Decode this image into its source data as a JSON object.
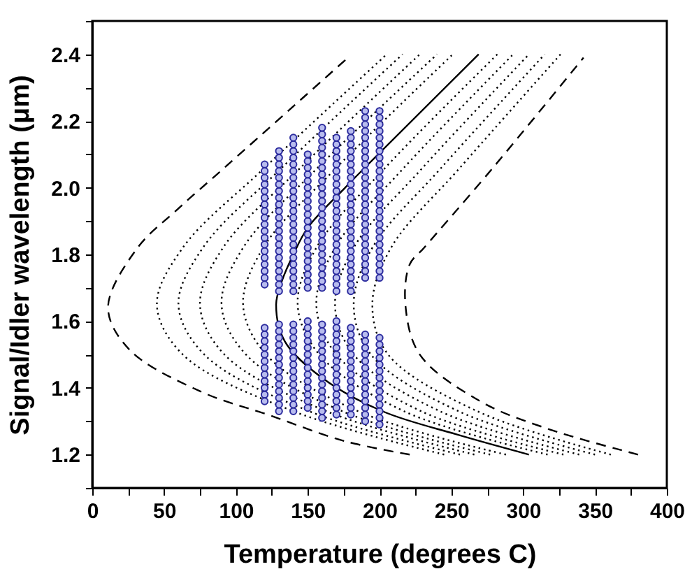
{
  "chart_data": {
    "type": "line",
    "xlabel": "Temperature (degrees C)",
    "ylabel": "Signal/Idler wavelength (μm)",
    "xlim": [
      0,
      400
    ],
    "ylim": [
      1.1,
      2.5
    ],
    "xticks": [
      0,
      {
        "value": 25,
        "label": null
      },
      50,
      {
        "value": 75,
        "label": null
      },
      100,
      {
        "value": 125,
        "label": null
      },
      150,
      {
        "value": 175,
        "label": null
      },
      200,
      {
        "value": 225,
        "label": null
      },
      250,
      {
        "value": 275,
        "label": null
      },
      300,
      {
        "value": 325,
        "label": null
      },
      350,
      {
        "value": 375,
        "label": null
      },
      400
    ],
    "yticks": [
      {
        "value": 1.1,
        "label": null
      },
      {
        "value": 1.2,
        "label": "1.2"
      },
      {
        "value": 1.3,
        "label": null
      },
      {
        "value": 1.4,
        "label": "1.4"
      },
      {
        "value": 1.5,
        "label": null
      },
      {
        "value": 1.6,
        "label": "1.6"
      },
      {
        "value": 1.7,
        "label": null
      },
      {
        "value": 1.8,
        "label": "1.8"
      },
      {
        "value": 1.9,
        "label": null
      },
      {
        "value": 2.0,
        "label": "2.0"
      },
      {
        "value": 2.1,
        "label": null
      },
      {
        "value": 2.2,
        "label": "2.2"
      },
      {
        "value": 2.3,
        "label": null
      },
      {
        "value": 2.4,
        "label": "2.4"
      },
      {
        "value": 2.5,
        "label": null
      }
    ],
    "grid": false,
    "series": [
      {
        "color": "#000000",
        "line_style": "dashed",
        "x": [
          221,
          176,
          124,
          75,
          26,
          11,
          31,
          59,
          92,
          178
        ],
        "values": [
          1.2,
          1.24,
          1.317,
          1.39,
          1.514,
          1.64,
          1.817,
          1.934,
          2.06,
          2.39
        ]
      },
      {
        "color": "#000000",
        "line_style": "dotted",
        "x": [
          245,
          140,
          63,
          45,
          63,
          120,
          205
        ],
        "values": [
          1.2,
          1.33,
          1.5,
          1.65,
          1.82,
          2.06,
          2.4
        ]
      },
      {
        "color": "#000000",
        "line_style": "dotted",
        "x": [
          256,
          151,
          78,
          60,
          77,
          132,
          216
        ],
        "values": [
          1.2,
          1.33,
          1.5,
          1.65,
          1.82,
          2.06,
          2.4
        ]
      },
      {
        "color": "#000000",
        "line_style": "dotted",
        "x": [
          266,
          163,
          92,
          75,
          91,
          145,
          228
        ],
        "values": [
          1.2,
          1.33,
          1.5,
          1.65,
          1.82,
          2.06,
          2.4
        ]
      },
      {
        "color": "#000000",
        "line_style": "dotted",
        "x": [
          277,
          174,
          107,
          90,
          105,
          157,
          240
        ],
        "values": [
          1.2,
          1.33,
          1.5,
          1.65,
          1.82,
          2.06,
          2.4
        ]
      },
      {
        "color": "#000000",
        "line_style": "dotted",
        "x": [
          288,
          185,
          121,
          105,
          119,
          170,
          251
        ],
        "values": [
          1.2,
          1.33,
          1.5,
          1.65,
          1.82,
          2.06,
          2.4
        ]
      },
      {
        "color": "#000000",
        "line_style": "solid",
        "x": [
          304,
          254,
          202,
          160,
          134,
          128,
          132,
          140,
          150,
          176,
          199,
          269
        ],
        "values": [
          1.2,
          1.26,
          1.33,
          1.43,
          1.54,
          1.65,
          1.72,
          1.8,
          1.88,
          2.0,
          2.1,
          2.4
        ]
      },
      {
        "color": "#000000",
        "line_style": "dotted",
        "x": [
          317,
          217,
          158,
          143,
          156,
          204,
          282
        ],
        "values": [
          1.2,
          1.33,
          1.5,
          1.65,
          1.82,
          2.06,
          2.4
        ]
      },
      {
        "color": "#000000",
        "line_style": "dotted",
        "x": [
          328,
          229,
          170,
          156,
          169,
          217,
          293
        ],
        "values": [
          1.2,
          1.33,
          1.5,
          1.65,
          1.82,
          2.06,
          2.4
        ]
      },
      {
        "color": "#000000",
        "line_style": "dotted",
        "x": [
          339,
          242,
          182,
          169,
          182,
          230,
          304
        ],
        "values": [
          1.2,
          1.33,
          1.5,
          1.65,
          1.82,
          2.06,
          2.4
        ]
      },
      {
        "color": "#000000",
        "line_style": "dotted",
        "x": [
          350,
          255,
          194,
          182,
          195,
          243,
          315
        ],
        "values": [
          1.2,
          1.33,
          1.5,
          1.65,
          1.82,
          2.06,
          2.4
        ]
      },
      {
        "color": "#000000",
        "line_style": "dotted",
        "x": [
          361,
          268,
          206,
          195,
          208,
          256,
          326
        ],
        "values": [
          1.2,
          1.33,
          1.5,
          1.65,
          1.82,
          2.06,
          2.4
        ]
      },
      {
        "color": "#000000",
        "line_style": "dashed",
        "x": [
          380,
          318,
          270,
          228,
          218,
          221,
          231,
          279,
          342
        ],
        "values": [
          1.2,
          1.276,
          1.36,
          1.5,
          1.65,
          1.77,
          1.82,
          2.06,
          2.39
        ]
      },
      {
        "type": "scatter",
        "marker": "circle",
        "color": "#2b2b9e",
        "x": [
          120,
          120,
          120,
          120,
          120,
          120,
          120,
          120,
          120,
          120,
          120,
          120,
          120,
          120,
          120,
          120,
          120,
          120,
          120,
          120,
          120,
          120,
          120,
          120,
          120,
          120,
          120,
          120,
          120,
          120,
          120
        ],
        "values": [
          1.36,
          1.38,
          1.4,
          1.42,
          1.44,
          1.46,
          1.48,
          1.5,
          1.52,
          1.54,
          1.56,
          1.58,
          1.71,
          1.73,
          1.75,
          1.77,
          1.79,
          1.81,
          1.83,
          1.85,
          1.87,
          1.89,
          1.91,
          1.93,
          1.95,
          1.97,
          1.99,
          2.01,
          2.03,
          2.05,
          2.07
        ]
      },
      {
        "type": "scatter",
        "marker": "circle",
        "color": "#2b2b9e",
        "x": [
          130,
          130,
          130,
          130,
          130,
          130,
          130,
          130,
          130,
          130,
          130,
          130,
          130,
          130,
          130,
          130,
          130,
          130,
          130,
          130,
          130,
          130,
          130,
          130,
          130,
          130,
          130,
          130,
          130,
          130,
          130,
          130,
          130,
          130,
          130,
          130
        ],
        "values": [
          1.33,
          1.35,
          1.37,
          1.39,
          1.41,
          1.43,
          1.45,
          1.47,
          1.49,
          1.51,
          1.53,
          1.55,
          1.57,
          1.59,
          1.69,
          1.71,
          1.73,
          1.75,
          1.77,
          1.79,
          1.81,
          1.83,
          1.85,
          1.87,
          1.89,
          1.91,
          1.93,
          1.95,
          1.97,
          1.99,
          2.01,
          2.03,
          2.05,
          2.07,
          2.09,
          2.11
        ]
      },
      {
        "type": "scatter",
        "marker": "circle",
        "color": "#2b2b9e",
        "x": [
          140,
          140,
          140,
          140,
          140,
          140,
          140,
          140,
          140,
          140,
          140,
          140,
          140,
          140,
          140,
          140,
          140,
          140,
          140,
          140,
          140,
          140,
          140,
          140,
          140,
          140,
          140,
          140,
          140,
          140,
          140,
          140,
          140,
          140,
          140,
          140,
          140,
          140
        ],
        "values": [
          1.33,
          1.35,
          1.37,
          1.39,
          1.41,
          1.43,
          1.45,
          1.47,
          1.49,
          1.51,
          1.53,
          1.55,
          1.57,
          1.59,
          1.69,
          1.71,
          1.73,
          1.75,
          1.77,
          1.79,
          1.81,
          1.83,
          1.85,
          1.87,
          1.89,
          1.91,
          1.93,
          1.95,
          1.97,
          1.99,
          2.01,
          2.03,
          2.05,
          2.07,
          2.09,
          2.11,
          2.13,
          2.15
        ]
      },
      {
        "type": "scatter",
        "marker": "circle",
        "color": "#2b2b9e",
        "x": [
          150,
          150,
          150,
          150,
          150,
          150,
          150,
          150,
          150,
          150,
          150,
          150,
          150,
          150,
          150,
          150,
          150,
          150,
          150,
          150,
          150,
          150,
          150,
          150,
          150,
          150,
          150,
          150,
          150,
          150,
          150,
          150,
          150,
          150,
          150
        ],
        "values": [
          1.34,
          1.36,
          1.38,
          1.4,
          1.42,
          1.44,
          1.46,
          1.48,
          1.5,
          1.52,
          1.54,
          1.56,
          1.58,
          1.6,
          1.7,
          1.72,
          1.74,
          1.76,
          1.78,
          1.8,
          1.82,
          1.84,
          1.86,
          1.88,
          1.9,
          1.92,
          1.94,
          1.96,
          1.98,
          2.0,
          2.02,
          2.04,
          2.06,
          2.08,
          2.1
        ]
      },
      {
        "type": "scatter",
        "marker": "circle",
        "color": "#2b2b9e",
        "x": [
          160,
          160,
          160,
          160,
          160,
          160,
          160,
          160,
          160,
          160,
          160,
          160,
          160,
          160,
          160,
          160,
          160,
          160,
          160,
          160,
          160,
          160,
          160,
          160,
          160,
          160,
          160,
          160,
          160,
          160,
          160,
          160,
          160,
          160,
          160,
          160,
          160,
          160,
          160,
          160
        ],
        "values": [
          1.31,
          1.33,
          1.35,
          1.37,
          1.39,
          1.41,
          1.43,
          1.45,
          1.47,
          1.49,
          1.51,
          1.53,
          1.55,
          1.57,
          1.59,
          1.7,
          1.72,
          1.74,
          1.76,
          1.78,
          1.8,
          1.82,
          1.84,
          1.86,
          1.88,
          1.9,
          1.92,
          1.94,
          1.96,
          1.98,
          2.0,
          2.02,
          2.04,
          2.06,
          2.08,
          2.1,
          2.12,
          2.14,
          2.16,
          2.18
        ]
      },
      {
        "type": "scatter",
        "marker": "circle",
        "color": "#2b2b9e",
        "x": [
          170,
          170,
          170,
          170,
          170,
          170,
          170,
          170,
          170,
          170,
          170,
          170,
          170,
          170,
          170,
          170,
          170,
          170,
          170,
          170,
          170,
          170,
          170,
          170,
          170,
          170,
          170,
          170,
          170,
          170,
          170,
          170,
          170,
          170,
          170,
          170,
          170,
          170,
          170
        ],
        "values": [
          1.32,
          1.34,
          1.36,
          1.38,
          1.4,
          1.42,
          1.44,
          1.46,
          1.48,
          1.5,
          1.52,
          1.54,
          1.56,
          1.58,
          1.6,
          1.69,
          1.71,
          1.73,
          1.75,
          1.77,
          1.79,
          1.81,
          1.83,
          1.85,
          1.87,
          1.89,
          1.91,
          1.93,
          1.95,
          1.97,
          1.99,
          2.01,
          2.03,
          2.05,
          2.07,
          2.09,
          2.11,
          2.13,
          2.15
        ]
      },
      {
        "type": "scatter",
        "marker": "circle",
        "color": "#2b2b9e",
        "x": [
          180,
          180,
          180,
          180,
          180,
          180,
          180,
          180,
          180,
          180,
          180,
          180,
          180,
          180,
          180,
          180,
          180,
          180,
          180,
          180,
          180,
          180,
          180,
          180,
          180,
          180,
          180,
          180,
          180,
          180,
          180,
          180,
          180,
          180,
          180,
          180,
          180,
          180,
          180
        ],
        "values": [
          1.32,
          1.34,
          1.36,
          1.38,
          1.4,
          1.42,
          1.44,
          1.46,
          1.48,
          1.5,
          1.52,
          1.54,
          1.56,
          1.58,
          1.69,
          1.71,
          1.73,
          1.75,
          1.77,
          1.79,
          1.81,
          1.83,
          1.85,
          1.87,
          1.89,
          1.91,
          1.93,
          1.95,
          1.97,
          1.99,
          2.01,
          2.03,
          2.05,
          2.07,
          2.09,
          2.11,
          2.13,
          2.15,
          2.17
        ]
      },
      {
        "type": "scatter",
        "marker": "circle",
        "color": "#2b2b9e",
        "x": [
          190,
          190,
          190,
          190,
          190,
          190,
          190,
          190,
          190,
          190,
          190,
          190,
          190,
          190,
          190,
          190,
          190,
          190,
          190,
          190,
          190,
          190,
          190,
          190,
          190,
          190,
          190,
          190,
          190,
          190,
          190,
          190,
          190,
          190,
          190,
          190,
          190,
          190,
          190,
          190
        ],
        "values": [
          1.3,
          1.32,
          1.34,
          1.36,
          1.38,
          1.4,
          1.42,
          1.44,
          1.46,
          1.48,
          1.5,
          1.52,
          1.54,
          1.56,
          1.73,
          1.75,
          1.77,
          1.79,
          1.81,
          1.83,
          1.85,
          1.87,
          1.89,
          1.91,
          1.93,
          1.95,
          1.97,
          1.99,
          2.01,
          2.03,
          2.05,
          2.07,
          2.09,
          2.11,
          2.13,
          2.15,
          2.17,
          2.19,
          2.21,
          2.23
        ]
      },
      {
        "type": "scatter",
        "marker": "circle",
        "color": "#2b2b9e",
        "x": [
          200,
          200,
          200,
          200,
          200,
          200,
          200,
          200,
          200,
          200,
          200,
          200,
          200,
          200,
          200,
          200,
          200,
          200,
          200,
          200,
          200,
          200,
          200,
          200,
          200,
          200,
          200,
          200,
          200,
          200,
          200,
          200,
          200,
          200,
          200,
          200,
          200,
          200,
          200,
          200
        ],
        "values": [
          1.29,
          1.31,
          1.33,
          1.35,
          1.37,
          1.39,
          1.41,
          1.43,
          1.45,
          1.47,
          1.49,
          1.51,
          1.53,
          1.55,
          1.73,
          1.75,
          1.77,
          1.79,
          1.81,
          1.83,
          1.85,
          1.87,
          1.89,
          1.91,
          1.93,
          1.95,
          1.97,
          1.99,
          2.01,
          2.03,
          2.05,
          2.07,
          2.09,
          2.11,
          2.13,
          2.15,
          2.17,
          2.19,
          2.21,
          2.23
        ]
      }
    ]
  }
}
